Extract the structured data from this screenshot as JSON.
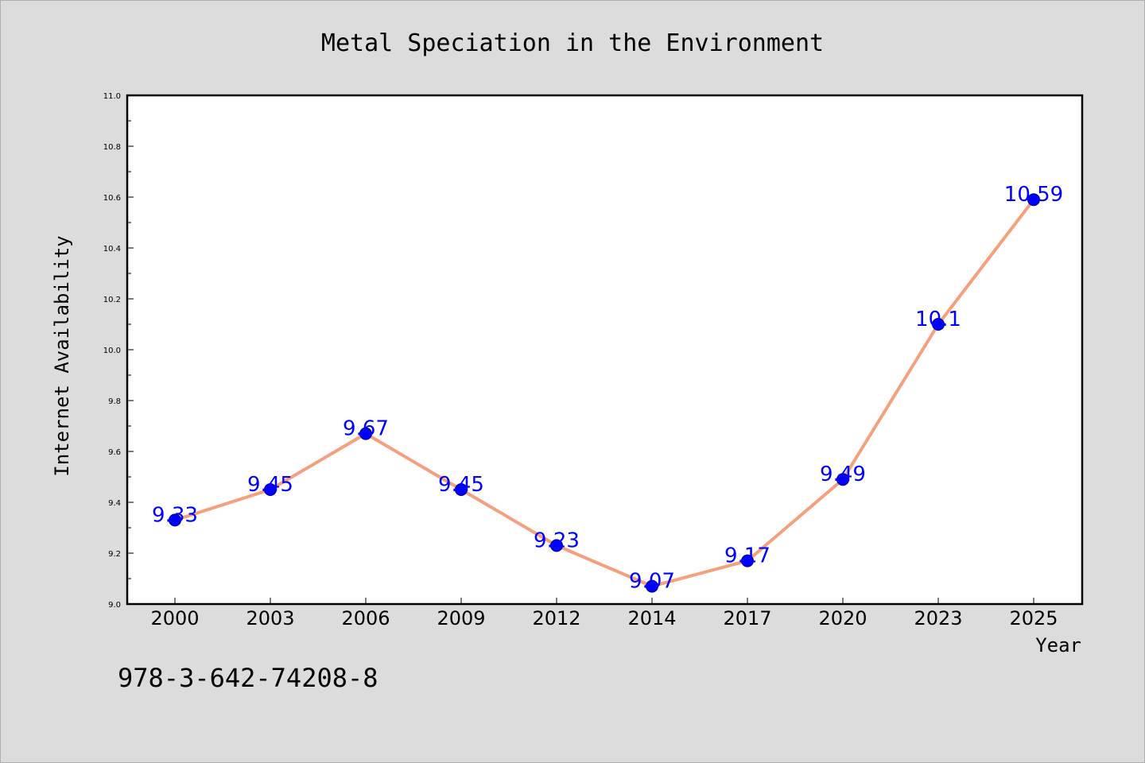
{
  "chart_data": {
    "type": "line",
    "title": "Metal Speciation in the Environment",
    "xlabel": "Year",
    "ylabel": "Internet Availability",
    "categories": [
      "2000",
      "2003",
      "2006",
      "2009",
      "2012",
      "2014",
      "2017",
      "2020",
      "2023",
      "2025"
    ],
    "values": [
      9.33,
      9.45,
      9.67,
      9.45,
      9.23,
      9.07,
      9.17,
      9.49,
      10.1,
      10.59
    ],
    "data_labels": [
      "9.33",
      "9.45",
      "9.67",
      "9.45",
      "9.23",
      "9.07",
      "9.17",
      "9.49",
      "10.1",
      "10.59"
    ],
    "ylim": [
      9.0,
      11.0
    ],
    "yticks": [
      "9.0",
      "9.2",
      "9.4",
      "9.6",
      "9.8",
      "10.0",
      "10.2",
      "10.4",
      "10.6",
      "10.8",
      "11.0"
    ],
    "grid": false,
    "colors": {
      "line": "#f4a07e",
      "marker": "#0000ff",
      "marker_edge": "#000080",
      "label": "#0000ff"
    }
  },
  "footnote": "978-3-642-74208-8"
}
